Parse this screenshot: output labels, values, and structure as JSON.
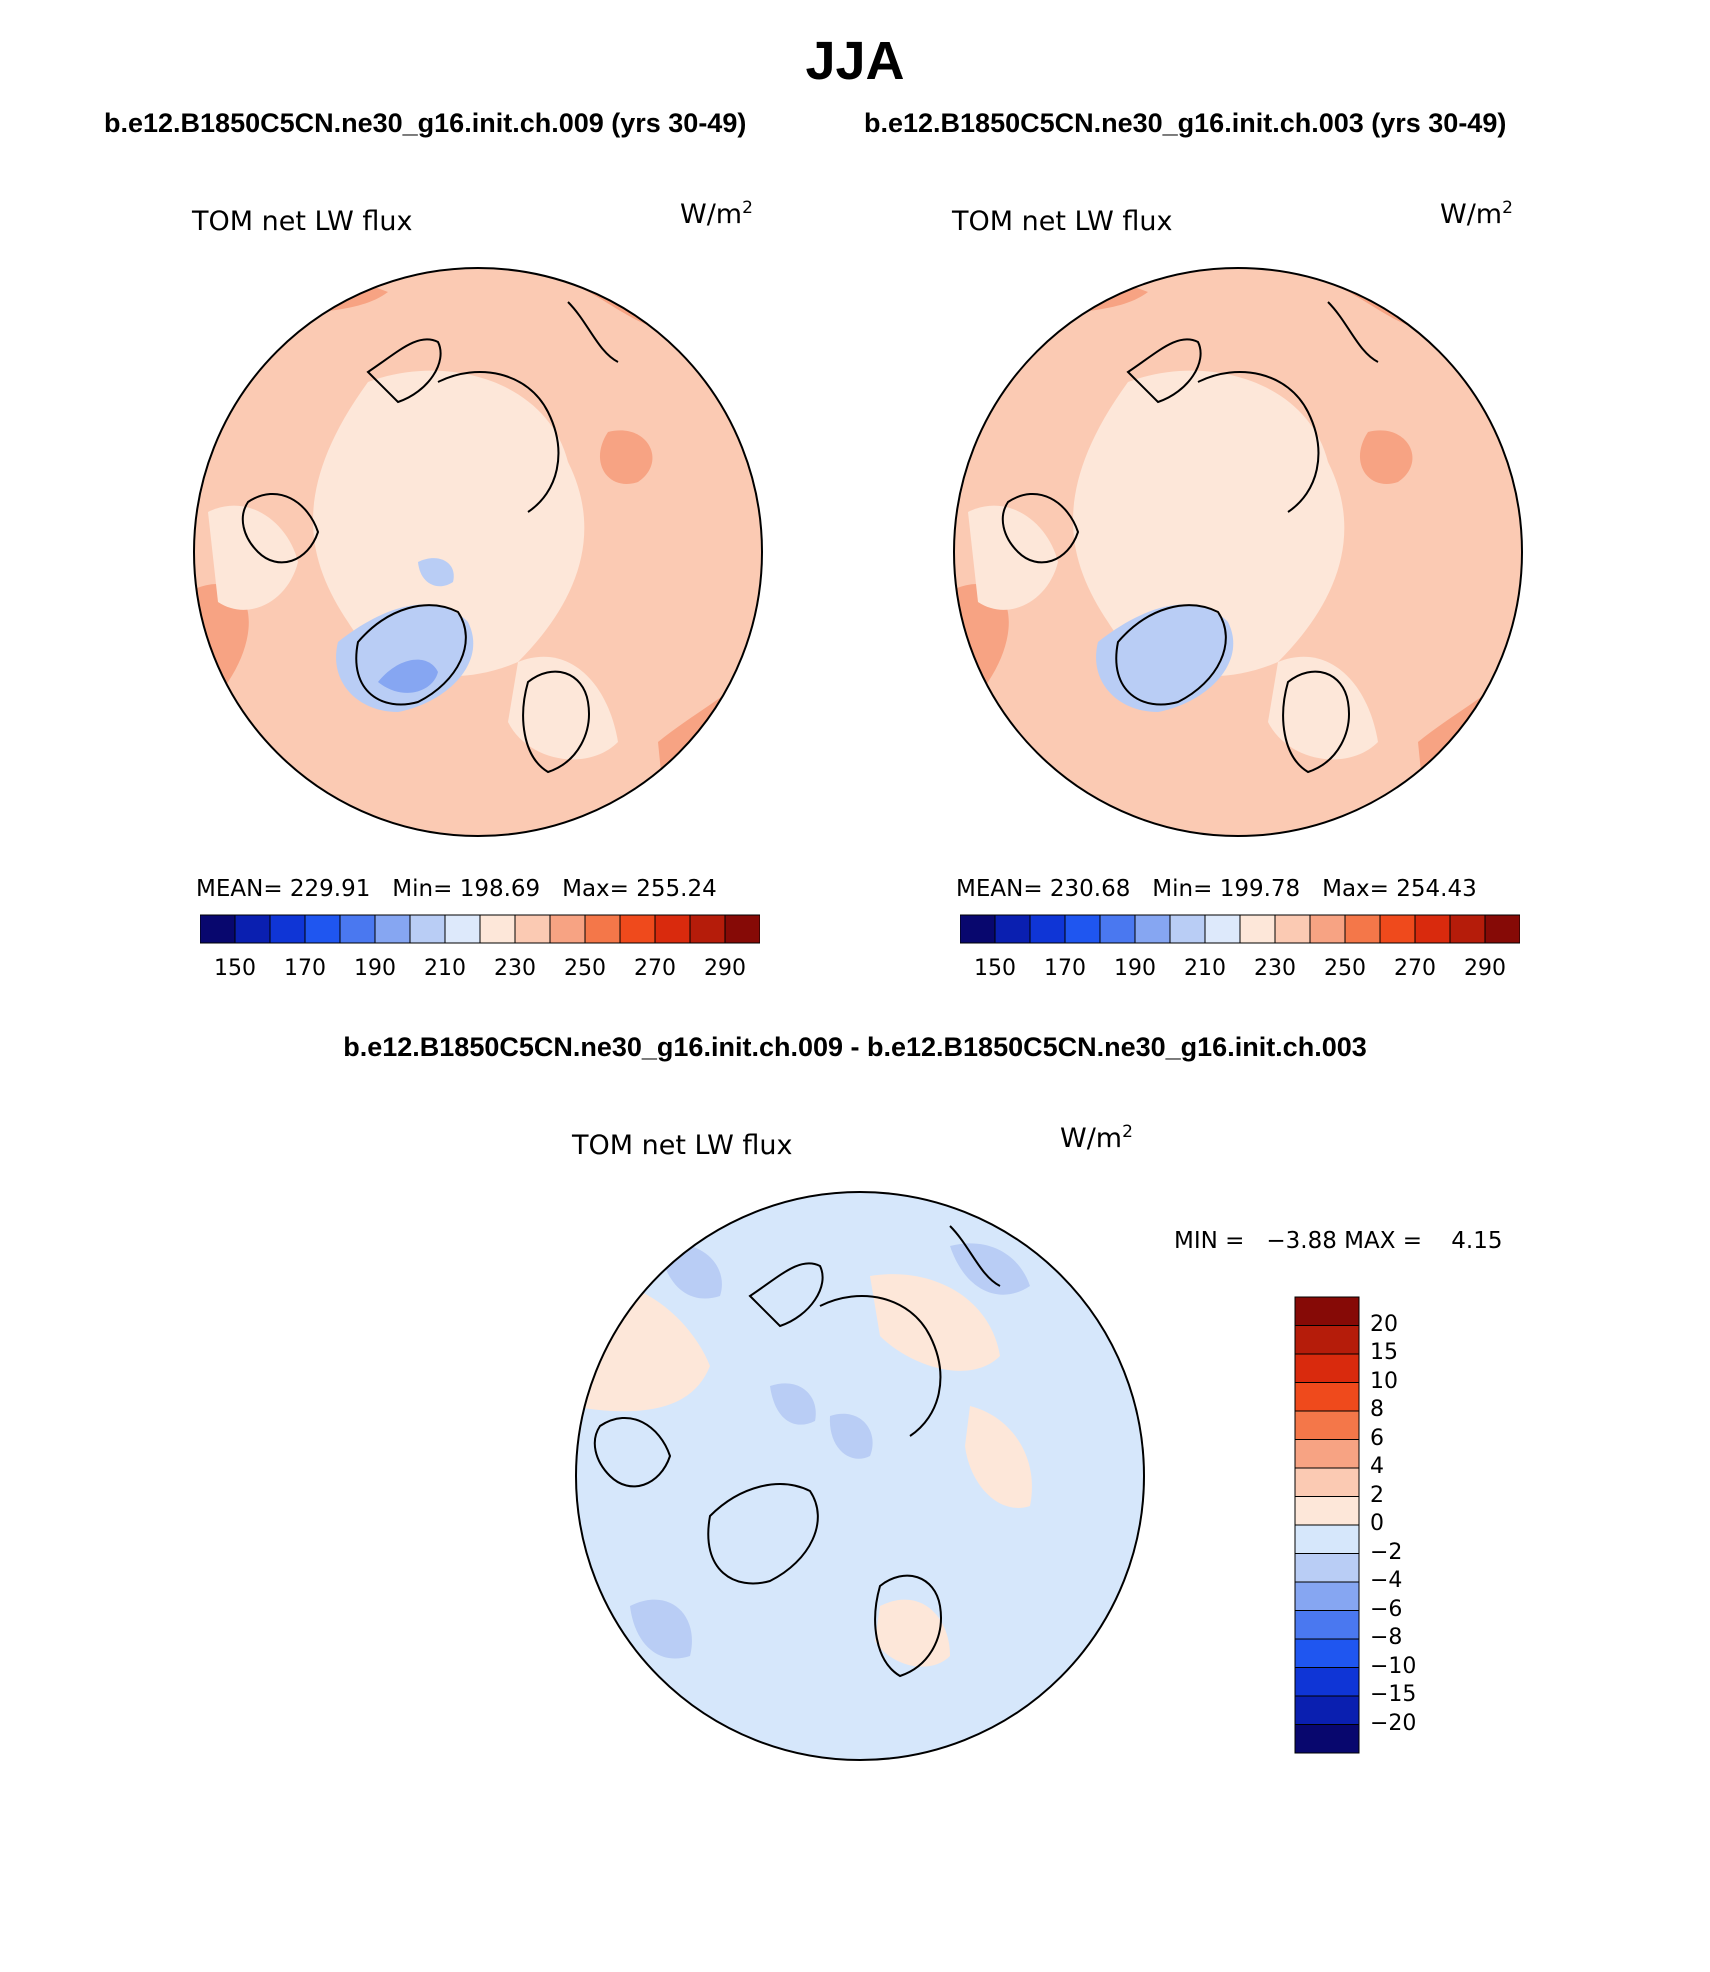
{
  "season": "JJA",
  "colors": {
    "abs_levels": [
      "#08076e",
      "#0a1fb0",
      "#0f35d6",
      "#1f56f0",
      "#4a78f0",
      "#86a6f2",
      "#b9cdf5",
      "#dde9fb",
      "#fde7d9",
      "#fbcab3",
      "#f7a383",
      "#f47749",
      "#ef4a1c",
      "#d92a0d",
      "#b51c0a",
      "#860a06"
    ],
    "diff_levels": [
      "#08076e",
      "#0a1fb0",
      "#0f35d6",
      "#1f56f0",
      "#4a78f0",
      "#86a6f2",
      "#b9cdf5",
      "#d6e7fb",
      "#fde7d9",
      "#fbcab3",
      "#f7a383",
      "#f47749",
      "#ef4a1c",
      "#d92a0d",
      "#b51c0a",
      "#860a06"
    ]
  },
  "panels": [
    {
      "case": "b.e12.B1850C5CN.ne30_g16.init.ch.009 (yrs 30-49)",
      "label": "TOM net LW flux",
      "units": "W/m",
      "units_exp": "2",
      "stats": "MEAN= 229.91   Min= 198.69   Max= 255.24",
      "colorbar_ticks": [
        "150",
        "170",
        "190",
        "210",
        "230",
        "250",
        "270",
        "290"
      ]
    },
    {
      "case": "b.e12.B1850C5CN.ne30_g16.init.ch.003 (yrs 30-49)",
      "label": "TOM net LW flux",
      "units": "W/m",
      "units_exp": "2",
      "stats": "MEAN= 230.68   Min= 199.78   Max= 254.43",
      "colorbar_ticks": [
        "150",
        "170",
        "190",
        "210",
        "230",
        "250",
        "270",
        "290"
      ]
    }
  ],
  "difference": {
    "title": "b.e12.B1850C5CN.ne30_g16.init.ch.009 - b.e12.B1850C5CN.ne30_g16.init.ch.003",
    "label": "TOM net LW flux",
    "units": "W/m",
    "units_exp": "2",
    "minmax": "MIN =   −3.88 MAX =    4.15",
    "colorbar_ticks": [
      "20",
      "15",
      "10",
      "8",
      "6",
      "4",
      "2",
      "0",
      "−2",
      "−4",
      "−6",
      "−8",
      "−10",
      "−15",
      "−20"
    ]
  }
}
